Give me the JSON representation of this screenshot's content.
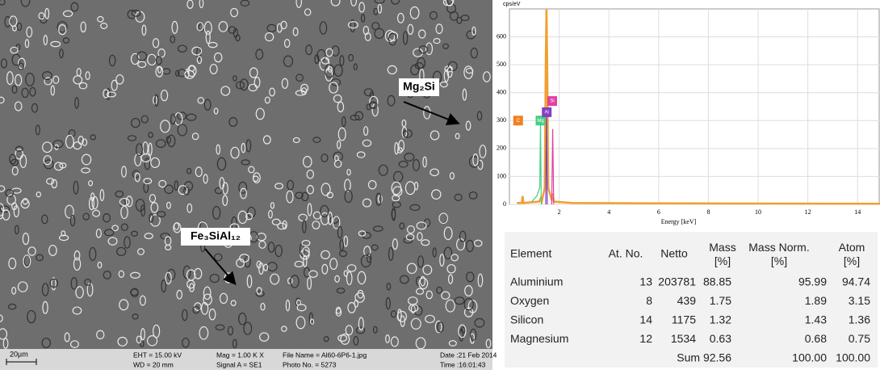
{
  "sem": {
    "annotations": [
      "Mg₂Si",
      "Fe₃SiAl₁₂"
    ],
    "scale_bar": "20µm",
    "info": [
      "EHT = 15.00 kV",
      "Mag = 1.00 K X",
      "File Name = Al60-6P6-1.jpg",
      "Date :21 Feb 2014",
      "WD = 20 mm",
      "Signal A = SE1",
      "Photo No. = 5273",
      "Time :16:01:43"
    ]
  },
  "chart_data": {
    "type": "line",
    "ylabel": "cps/eV",
    "xlabel": "Energy [keV]",
    "xlim": [
      0,
      14.9
    ],
    "ylim": [
      0,
      700
    ],
    "xticks": [
      2,
      4,
      6,
      8,
      10,
      12,
      14
    ],
    "yticks": [
      0,
      100,
      200,
      300,
      400,
      500,
      600
    ],
    "grid": true,
    "series": [
      {
        "color": "#f0a030",
        "x": [
          0.3,
          0.5,
          0.53,
          0.56,
          1.2,
          1.25,
          1.3,
          1.42,
          1.46,
          1.49,
          1.52,
          1.56,
          1.7,
          1.74,
          1.78,
          2.5,
          5,
          10,
          14.9
        ],
        "values": [
          5,
          5,
          30,
          5,
          10,
          20,
          10,
          60,
          500,
          700,
          500,
          60,
          15,
          40,
          10,
          5,
          4,
          3,
          2
        ]
      },
      {
        "color": "#40d080",
        "x": [
          0.9,
          1.1,
          1.22,
          1.25,
          1.28
        ],
        "values": [
          10,
          30,
          60,
          300,
          0
        ]
      },
      {
        "color": "#8040c0",
        "x": [
          1.46,
          1.49,
          1.52
        ],
        "values": [
          0,
          330,
          0
        ]
      },
      {
        "color": "#e040a0",
        "x": [
          1.7,
          1.74,
          1.78
        ],
        "values": [
          0,
          270,
          0
        ]
      }
    ],
    "peak_labels": [
      {
        "label": "C",
        "x": 0.35,
        "y": 300,
        "color": "#f08020"
      },
      {
        "label": "Mg",
        "x": 1.25,
        "y": 300,
        "color": "#40d080"
      },
      {
        "label": "Al",
        "x": 1.5,
        "y": 330,
        "color": "#8040c0"
      },
      {
        "label": "Si",
        "x": 1.72,
        "y": 370,
        "color": "#e040a0"
      }
    ]
  },
  "table": {
    "headers": [
      "Element",
      "At. No.",
      "Netto",
      "Mass [%]",
      "Mass Norm. [%]",
      "Atom [%]"
    ],
    "rows": [
      [
        "Aluminium",
        "13",
        "203781",
        "88.85",
        "95.99",
        "94.74"
      ],
      [
        "Oxygen",
        "8",
        "439",
        "1.75",
        "1.89",
        "3.15"
      ],
      [
        "Silicon",
        "14",
        "1175",
        "1.32",
        "1.43",
        "1.36"
      ],
      [
        "Magnesium",
        "12",
        "1534",
        "0.63",
        "0.68",
        "0.75"
      ]
    ],
    "sum_row": [
      "Sum 92.56",
      "100.00",
      "100.00"
    ]
  }
}
